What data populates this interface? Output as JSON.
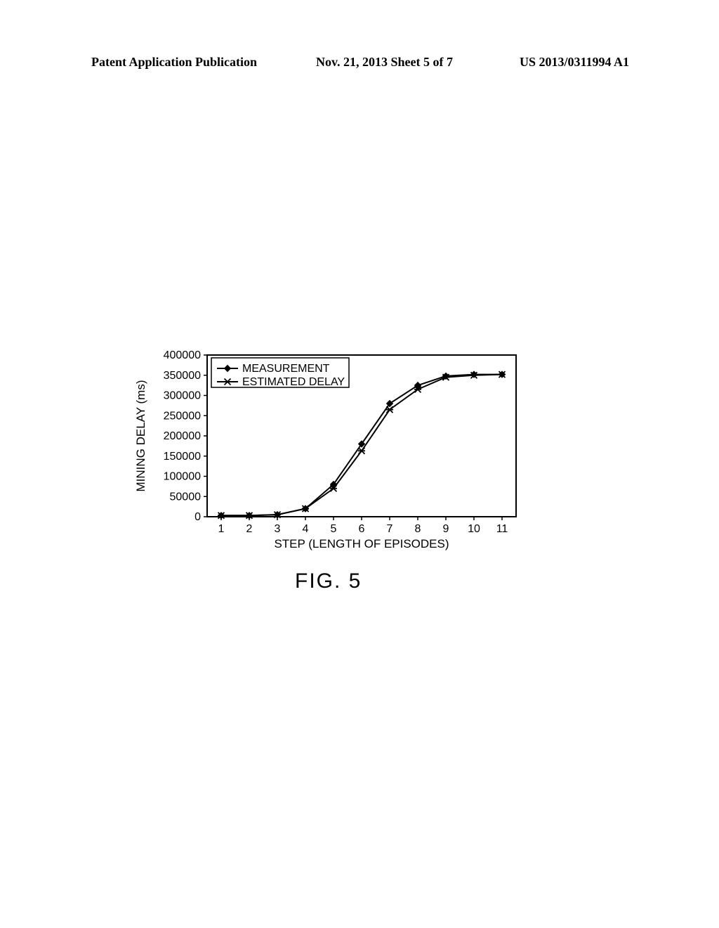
{
  "header": {
    "left": "Patent Application Publication",
    "center": "Nov. 21, 2013  Sheet 5 of 7",
    "right": "US 2013/0311994 A1"
  },
  "figure": {
    "caption": "FIG. 5",
    "chart": {
      "type": "line",
      "background_color": "#ffffff",
      "border_color": "#000000",
      "series": [
        {
          "name": "MEASUREMENT",
          "marker": "diamond",
          "color": "#000000",
          "line_width": 2,
          "x": [
            1,
            2,
            3,
            4,
            5,
            6,
            7,
            8,
            9,
            10,
            11
          ],
          "y": [
            3000,
            3000,
            5000,
            20000,
            80000,
            180000,
            280000,
            325000,
            348000,
            352000,
            352000
          ]
        },
        {
          "name": "ESTIMATED DELAY",
          "marker": "star",
          "color": "#000000",
          "line_width": 2,
          "x": [
            1,
            2,
            3,
            4,
            5,
            6,
            7,
            8,
            9,
            10,
            11
          ],
          "y": [
            3000,
            3000,
            5000,
            20000,
            70000,
            163000,
            265000,
            315000,
            345000,
            350000,
            352000
          ]
        }
      ],
      "x": {
        "label": "STEP (LENGTH OF EPISODES)",
        "ticks": [
          1,
          2,
          3,
          4,
          5,
          6,
          7,
          8,
          9,
          10,
          11
        ],
        "lim": [
          0.5,
          11.5
        ],
        "label_fontsize": 17,
        "tick_fontsize": 16
      },
      "y": {
        "label": "MINING DELAY (ms)",
        "ticks": [
          0,
          50000,
          100000,
          150000,
          200000,
          250000,
          300000,
          350000,
          400000
        ],
        "lim": [
          0,
          400000
        ],
        "label_fontsize": 17,
        "tick_fontsize": 16
      },
      "legend": {
        "position": "top-left-inside",
        "border_color": "#000000",
        "items": [
          "MEASUREMENT",
          "ESTIMATED DELAY"
        ]
      }
    }
  }
}
